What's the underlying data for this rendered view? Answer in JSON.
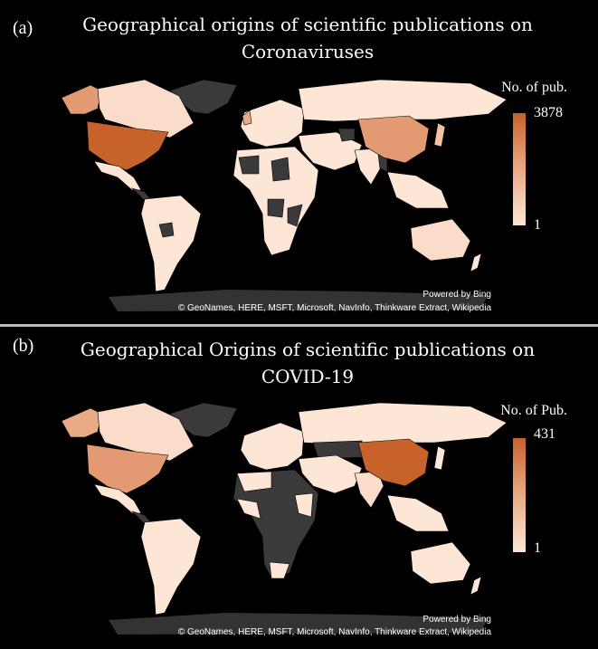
{
  "panels": [
    {
      "label": "(a)",
      "title_line1": "Geographical origins of scientific publications on",
      "title_line2": "Coronaviruses",
      "legend_title": "No. of pub.",
      "legend_max": "3878",
      "legend_min": "1",
      "credit_line1": "Powered by Bing",
      "credit_line2": "© GeoNames, HERE, MSFT, Microsoft, NavInfo, Thinkware Extract, Wikipedia"
    },
    {
      "label": "(b)",
      "title_line1": "Geographical Origins of scientific publications on",
      "title_line2": "COVID-19",
      "legend_title": "No. of Pub.",
      "legend_max": "431",
      "legend_min": "1",
      "credit_line1": "Powered by Bing",
      "credit_line2": "© GeoNames, HERE, MSFT, Microsoft, NavInfo, Thinkware Extract, Wikipedia"
    }
  ],
  "colors": {
    "high": "#c8622b",
    "mid": "#e39a72",
    "low": "#fde6d6",
    "no_data": "#3a3a3a",
    "background": "#000000"
  }
}
